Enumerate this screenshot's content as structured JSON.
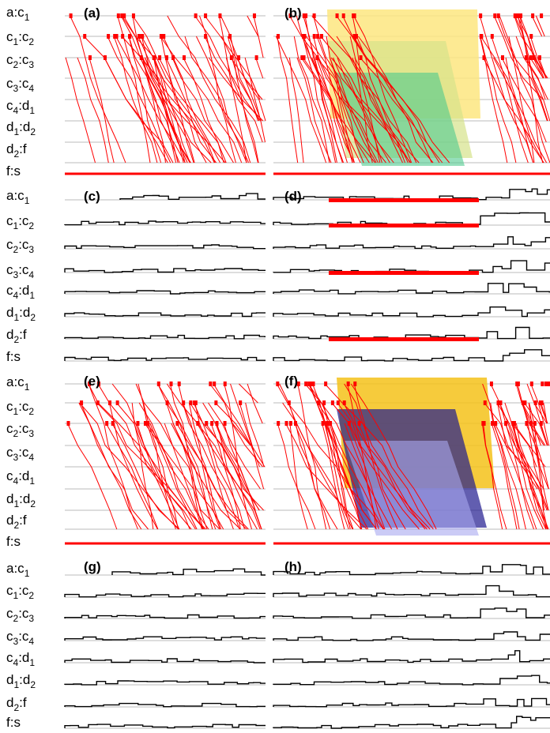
{
  "figure": {
    "row_labels": [
      {
        "base": "a:c",
        "sub": "1",
        "tail": ""
      },
      {
        "base": "c",
        "sub": "1",
        "tail": ":c",
        "sub2": "2"
      },
      {
        "base": "c",
        "sub": "2",
        "tail": ":c",
        "sub2": "3"
      },
      {
        "base": "c",
        "sub": "3",
        "tail": ":c",
        "sub2": "4"
      },
      {
        "base": "c",
        "sub": "4",
        "tail": ":d",
        "sub2": "1"
      },
      {
        "base": "d",
        "sub": "1",
        "tail": ":d",
        "sub2": "2"
      },
      {
        "base": "d",
        "sub": "2",
        "tail": ":f",
        "sub2": ""
      },
      {
        "base": "f:s",
        "sub": "",
        "tail": "",
        "sub2": ""
      }
    ],
    "panels": [
      {
        "label": "(a)",
        "kind": "trains"
      },
      {
        "label": "(b)",
        "kind": "trains-congested"
      },
      {
        "label": "(c)",
        "kind": "steps"
      },
      {
        "label": "(d)",
        "kind": "steps-congested"
      },
      {
        "label": "(e)",
        "kind": "trains"
      },
      {
        "label": "(f)",
        "kind": "trains-congested"
      },
      {
        "label": "(g)",
        "kind": "steps"
      },
      {
        "label": "(h)",
        "kind": "steps-congested"
      }
    ]
  },
  "colors": {
    "trajectory": "#ff0000",
    "step_line": "#000000",
    "gridline": "#bbbbbb",
    "congestion_b": [
      "#fde680",
      "#d6e28a",
      "#4fc98e",
      "#9ab0e8"
    ],
    "congestion_f": [
      "#f5c21a",
      "#1f1a8f",
      "#a8a8f0"
    ]
  }
}
